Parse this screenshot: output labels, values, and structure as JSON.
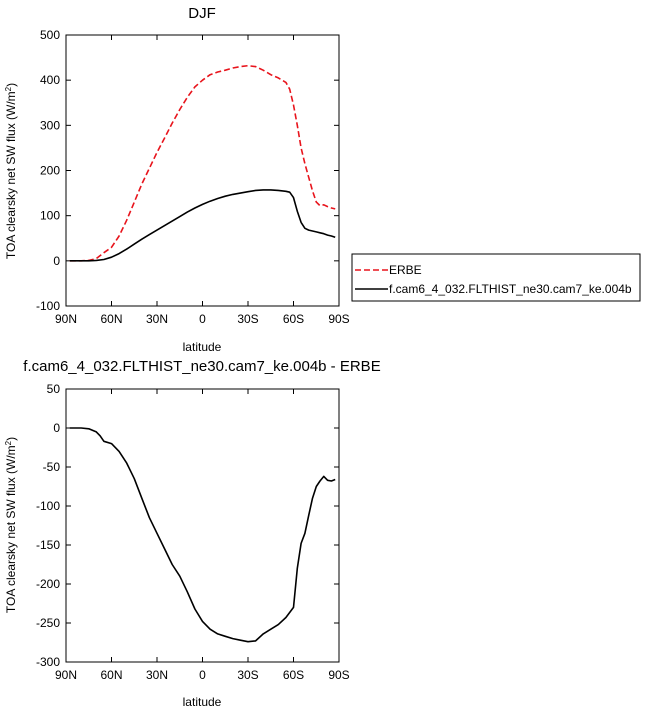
{
  "chart_data": [
    {
      "type": "line",
      "title": "DJF",
      "xlabel": "latitude",
      "ylabel": "TOA clearsky net SW flux (W/m²)",
      "ylabel_main": "TOA clearsky net SW flux (W/m",
      "ylabel_sup": "2",
      "ylabel_end": ")",
      "xlim": [
        90,
        -90
      ],
      "ylim": [
        -100,
        500
      ],
      "x_ticks": [
        90,
        60,
        30,
        0,
        -30,
        -60,
        -90
      ],
      "x_tick_labels": [
        "90N",
        "60N",
        "30N",
        "0",
        "30S",
        "60S",
        "90S"
      ],
      "y_ticks": [
        -100,
        0,
        100,
        200,
        300,
        400,
        500
      ],
      "y_tick_labels": [
        "-100",
        "0",
        "100",
        "200",
        "300",
        "400",
        "500"
      ],
      "legend_position": "right",
      "series": [
        {
          "name": "ERBE",
          "color": "#e8141c",
          "dash": "dashed",
          "x": [
            87.5,
            80,
            75,
            70,
            65,
            60,
            55,
            50,
            45,
            40,
            35,
            30,
            25,
            20,
            15,
            10,
            5,
            0,
            -5,
            -10,
            -15,
            -20,
            -25,
            -30,
            -35,
            -40,
            -45,
            -50,
            -55,
            -57.5,
            -60,
            -62.5,
            -65,
            -67.5,
            -70,
            -72.5,
            -75,
            -77.5,
            -80,
            -82.5,
            -85,
            -87.5
          ],
          "y": [
            0,
            0,
            1,
            5,
            18,
            30,
            55,
            90,
            130,
            170,
            205,
            240,
            272,
            305,
            335,
            362,
            385,
            400,
            412,
            418,
            422,
            427,
            430,
            432,
            430,
            422,
            412,
            405,
            395,
            380,
            345,
            300,
            250,
            215,
            185,
            155,
            130,
            122,
            124,
            120,
            117,
            115
          ]
        },
        {
          "name": "f.cam6_4_032.FLTHIST_ne30.cam7_ke.004b",
          "color": "#000000",
          "dash": "solid",
          "x": [
            87.5,
            80,
            75,
            70,
            65,
            60,
            55,
            50,
            45,
            40,
            35,
            30,
            25,
            20,
            15,
            10,
            5,
            0,
            -5,
            -10,
            -15,
            -20,
            -25,
            -30,
            -35,
            -40,
            -45,
            -50,
            -55,
            -57.5,
            -60,
            -62.5,
            -65,
            -67.5,
            -70,
            -72.5,
            -75,
            -77.5,
            -80,
            -82.5,
            -85,
            -87.5
          ],
          "y": [
            0,
            0,
            0,
            1,
            3,
            8,
            16,
            26,
            37,
            48,
            58,
            68,
            78,
            88,
            98,
            108,
            117,
            125,
            132,
            138,
            143,
            147,
            150,
            153,
            156,
            157,
            157,
            156,
            154,
            152,
            140,
            110,
            85,
            72,
            68,
            66,
            64,
            62,
            60,
            57,
            55,
            52
          ]
        }
      ]
    },
    {
      "type": "line",
      "title": "f.cam6_4_032.FLTHIST_ne30.cam7_ke.004b - ERBE",
      "xlabel": "latitude",
      "ylabel": "TOA clearsky net SW flux (W/m²)",
      "ylabel_main": "TOA clearsky net SW flux (W/m",
      "ylabel_sup": "2",
      "ylabel_end": ")",
      "xlim": [
        90,
        -90
      ],
      "ylim": [
        -300,
        50
      ],
      "x_ticks": [
        90,
        60,
        30,
        0,
        -30,
        -60,
        -90
      ],
      "x_tick_labels": [
        "90N",
        "60N",
        "30N",
        "0",
        "30S",
        "60S",
        "90S"
      ],
      "y_ticks": [
        -300,
        -250,
        -200,
        -150,
        -100,
        -50,
        0,
        50
      ],
      "y_tick_labels": [
        "-300",
        "-250",
        "-200",
        "-150",
        "-100",
        "-50",
        "0",
        "50"
      ],
      "series": [
        {
          "color": "#000000",
          "dash": "solid",
          "x": [
            87.5,
            80,
            75,
            70,
            67.5,
            65,
            60,
            55,
            50,
            45,
            40,
            35,
            30,
            25,
            20,
            15,
            10,
            5,
            0,
            -5,
            -10,
            -15,
            -20,
            -25,
            -30,
            -35,
            -40,
            -45,
            -50,
            -55,
            -60,
            -62.5,
            -65,
            -67.5,
            -70,
            -72.5,
            -75,
            -77.5,
            -80,
            -82.5,
            -85,
            -87.5
          ],
          "y": [
            0,
            0,
            -1,
            -5,
            -10,
            -17,
            -20,
            -30,
            -45,
            -65,
            -90,
            -115,
            -135,
            -155,
            -175,
            -190,
            -210,
            -232,
            -248,
            -258,
            -264,
            -267,
            -270,
            -272,
            -274,
            -273,
            -264,
            -258,
            -252,
            -243,
            -230,
            -180,
            -148,
            -135,
            -112,
            -90,
            -75,
            -68,
            -62,
            -67,
            -68,
            -66
          ]
        }
      ]
    }
  ]
}
